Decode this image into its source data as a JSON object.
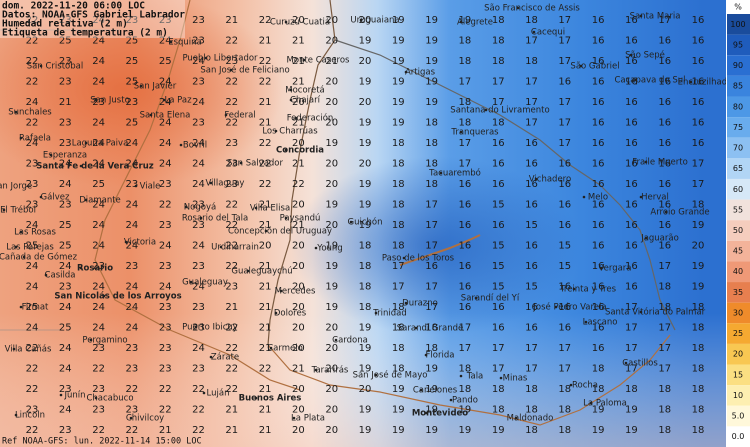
{
  "header": {
    "lines": [
      "dom. 2022-11-20 06:00 LOC",
      "Datos: NOAA-GFS Gabriel Labrador",
      "Humedad relativa (2 m)",
      "Etiqueta de temperatura (2 m)"
    ]
  },
  "footer": "Ref NOAA-GFS: lun. 2022-11-14 15:00 LOC",
  "legend": {
    "unit": "%",
    "ticks": [
      100,
      95,
      90,
      85,
      80,
      75,
      70,
      65,
      60,
      55,
      50,
      45,
      40,
      35,
      30,
      25,
      20,
      15,
      {
        "value": 10,
        "label": "10"
      },
      {
        "value": 5,
        "label": "5.0"
      },
      {
        "value": 0,
        "label": "0.0"
      }
    ],
    "colors": [
      "#1a4c9c",
      "#1f5cbc",
      "#2a6fd2",
      "#3a84de",
      "#4d98e6",
      "#69aced",
      "#8cc0f2",
      "#b1d5f5",
      "#d6e8f7",
      "#f1e2dc",
      "#f5cdbd",
      "#f3b39a",
      "#ef9977",
      "#e77f4f",
      "#ef8b2b",
      "#f5a931",
      "#f8c752",
      "#fbdf82",
      "#fdefb1",
      "#fff8da",
      "#ffffff"
    ]
  },
  "temperature_grid": {
    "rows": [
      [
        22,
        23,
        24,
        23,
        23,
        23,
        21,
        22,
        20,
        20,
        20,
        19,
        19,
        19,
        18,
        18,
        17,
        16,
        16,
        17,
        16
      ],
      [
        22,
        25,
        24,
        25,
        24,
        23,
        22,
        21,
        21,
        20,
        19,
        19,
        19,
        18,
        18,
        17,
        17,
        16,
        16,
        16,
        16
      ],
      [
        22,
        23,
        24,
        25,
        25,
        24,
        23,
        22,
        21,
        21,
        20,
        19,
        19,
        18,
        18,
        18,
        17,
        16,
        16,
        16,
        16
      ],
      [
        22,
        23,
        24,
        25,
        24,
        23,
        22,
        22,
        21,
        20,
        19,
        19,
        19,
        17,
        17,
        17,
        16,
        16,
        16,
        16,
        16
      ],
      [
        24,
        21,
        23,
        23,
        24,
        24,
        22,
        21,
        20,
        20,
        20,
        19,
        19,
        18,
        17,
        17,
        17,
        16,
        16,
        16,
        16
      ],
      [
        22,
        23,
        24,
        25,
        24,
        23,
        22,
        21,
        21,
        20,
        19,
        19,
        18,
        18,
        18,
        17,
        17,
        16,
        16,
        16,
        16
      ],
      [
        24,
        23,
        24,
        24,
        24,
        24,
        23,
        22,
        20,
        19,
        19,
        18,
        18,
        17,
        16,
        16,
        17,
        16,
        16,
        16,
        16
      ],
      [
        23,
        24,
        24,
        24,
        24,
        24,
        23,
        22,
        21,
        20,
        20,
        18,
        18,
        17,
        16,
        16,
        16,
        16,
        16,
        16,
        17
      ],
      [
        23,
        24,
        25,
        23,
        23,
        24,
        23,
        22,
        22,
        20,
        19,
        18,
        18,
        16,
        16,
        16,
        16,
        16,
        16,
        16,
        17
      ],
      [
        23,
        23,
        24,
        24,
        22,
        23,
        22,
        21,
        20,
        19,
        19,
        18,
        17,
        16,
        15,
        16,
        16,
        16,
        16,
        16,
        18
      ],
      [
        24,
        25,
        24,
        24,
        23,
        23,
        22,
        21,
        21,
        20,
        19,
        18,
        17,
        16,
        16,
        15,
        16,
        16,
        16,
        16,
        19
      ],
      [
        25,
        25,
        24,
        24,
        24,
        24,
        22,
        20,
        20,
        19,
        18,
        18,
        17,
        16,
        15,
        16,
        15,
        16,
        16,
        16,
        20
      ],
      [
        24,
        24,
        23,
        23,
        23,
        23,
        22,
        21,
        20,
        19,
        18,
        17,
        16,
        16,
        15,
        16,
        15,
        16,
        16,
        17,
        19
      ],
      [
        24,
        23,
        24,
        24,
        24,
        24,
        23,
        21,
        20,
        19,
        18,
        17,
        17,
        16,
        15,
        15,
        16,
        16,
        16,
        18,
        19
      ],
      [
        25,
        24,
        24,
        24,
        23,
        23,
        21,
        21,
        20,
        19,
        18,
        18,
        17,
        16,
        16,
        16,
        16,
        16,
        17,
        18,
        18
      ],
      [
        24,
        25,
        24,
        24,
        23,
        23,
        22,
        21,
        20,
        20,
        19,
        18,
        18,
        17,
        16,
        16,
        16,
        16,
        17,
        17,
        18
      ],
      [
        22,
        24,
        23,
        23,
        23,
        24,
        22,
        21,
        20,
        20,
        19,
        18,
        18,
        17,
        17,
        17,
        17,
        16,
        17,
        17,
        18
      ],
      [
        22,
        24,
        22,
        23,
        23,
        23,
        22,
        22,
        21,
        20,
        19,
        18,
        19,
        18,
        17,
        17,
        17,
        18,
        17,
        17,
        18
      ],
      [
        22,
        23,
        23,
        22,
        22,
        22,
        22,
        21,
        20,
        20,
        20,
        19,
        19,
        18,
        18,
        18,
        18,
        18,
        18,
        18,
        18
      ],
      [
        23,
        24,
        23,
        23,
        22,
        22,
        21,
        21,
        20,
        20,
        19,
        19,
        19,
        19,
        18,
        18,
        18,
        19,
        19,
        18,
        18
      ],
      [
        22,
        23,
        22,
        22,
        21,
        22,
        21,
        21,
        20,
        20,
        19,
        19,
        19,
        19,
        19,
        18,
        18,
        19,
        19,
        18,
        18
      ]
    ]
  },
  "places": [
    "Curuzú Cuatiá",
    "Uruguaiana",
    "Alegrete",
    "São Francisco de Assis",
    "Santa Maria",
    "Cacequi",
    "São Gabriel",
    "São Sepé",
    "Caçapava do Sul",
    "Encruzilhada",
    "Esquina",
    "Pueblo Libertador",
    "Monte Caseros",
    "San Cristóbal",
    "San Javier",
    "San José de Feliciano",
    "Mocoretá",
    "Artigas",
    "La Paz",
    "San Justo",
    "Santa Elena",
    "Federal",
    "Federación",
    "Chajarí",
    "Sunchales",
    "Santana do Livramento",
    "Los Charrúas",
    "Rafaela",
    "Bovril",
    "Concordia",
    "Tranqueras",
    "Laguna Paiva",
    "Esperanza",
    "San Salvador",
    "Santa Fe de la Vera Cruz",
    "Viale",
    "Villaguay",
    "Tacuarembó",
    "Vichadero",
    "Fraile Muerto",
    "Melo",
    "Herval",
    "San Jorge",
    "El Trébol",
    "Gálvez",
    "Diamante",
    "Nogoyá",
    "Rosario del Tala",
    "Villa Elisa",
    "Paysandú",
    "Guichón",
    "Arroio Grande",
    "Las Rosas",
    "Concepción del Uruguay",
    "Urdinarrain",
    "Victoria",
    "Young",
    "Jaguarão",
    "Las Parejas",
    "Cañada de Gómez",
    "Paso de los Toros",
    "Rosario",
    "Casilda",
    "Gualeguaychú",
    "Vergara",
    "Gualeguay",
    "Treinta y Tres",
    "Firmat",
    "San Nicolás de los Arroyos",
    "Mercedes",
    "Durazno",
    "Sarandí del Yí",
    "José Pedro Varela",
    "Santa Vitória do Palmar",
    "Trinidad",
    "Dolores",
    "Lascano",
    "Sarandí Grande",
    "Pergamino",
    "Puerto Ibicuy",
    "Cardona",
    "Villa Cañás",
    "Carmelo",
    "Zárate",
    "Florida",
    "Castillos",
    "Tararirás",
    "San José de Mayo",
    "Minas",
    "Tala",
    "Rocha",
    "Junín",
    "Chacabuco",
    "Luján",
    "Buenos Aires",
    "Canelones",
    "Pando",
    "La Paloma",
    "Montevideo",
    "Maldonado",
    "Lincoln",
    "Chivilcoy",
    "La Plata"
  ]
}
